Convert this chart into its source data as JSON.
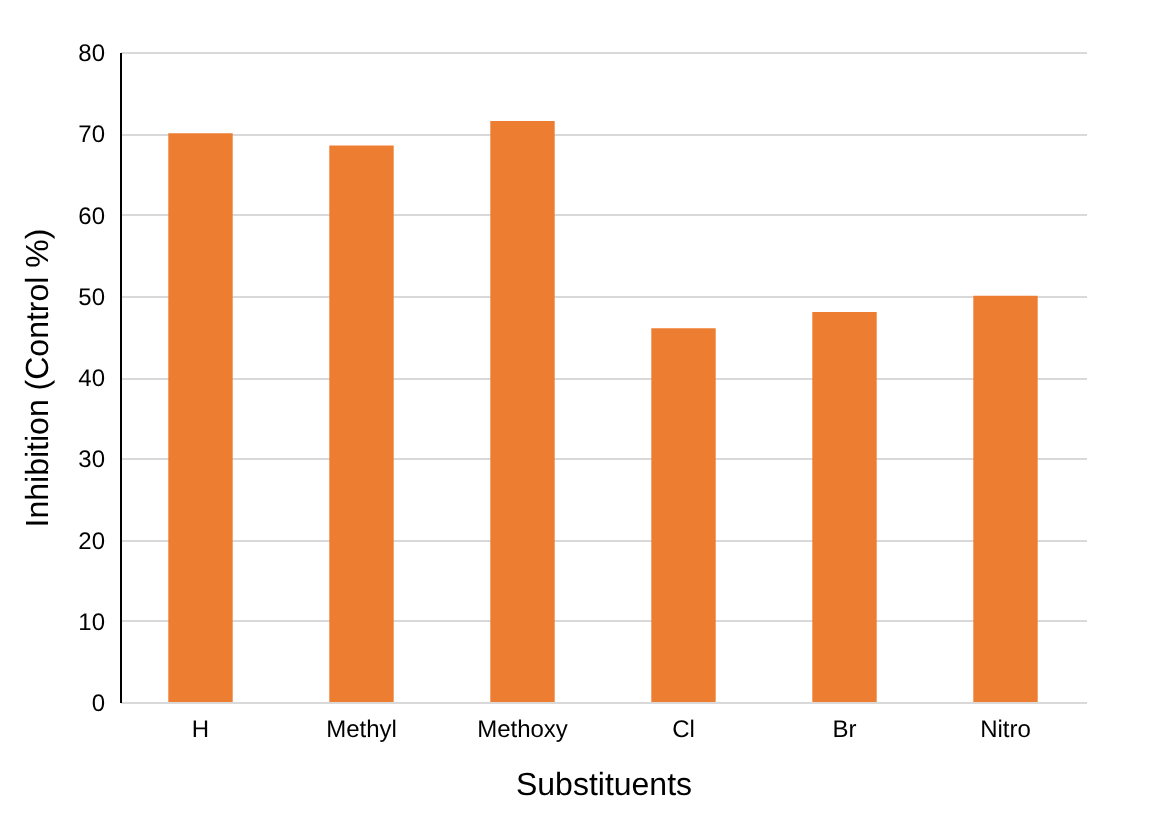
{
  "chart_data": {
    "type": "bar",
    "xlabel": "Substituents",
    "ylabel": "Inhibition (Control %)",
    "categories": [
      "H",
      "Methyl",
      "Methoxy",
      "Cl",
      "Br",
      "Nitro"
    ],
    "values": [
      70,
      68.5,
      71.5,
      46,
      48,
      50
    ],
    "color": "#ed7d31",
    "ylim": [
      0,
      80
    ],
    "yticks": [
      0,
      10,
      20,
      30,
      40,
      50,
      60,
      70,
      80
    ],
    "grid": "y"
  }
}
